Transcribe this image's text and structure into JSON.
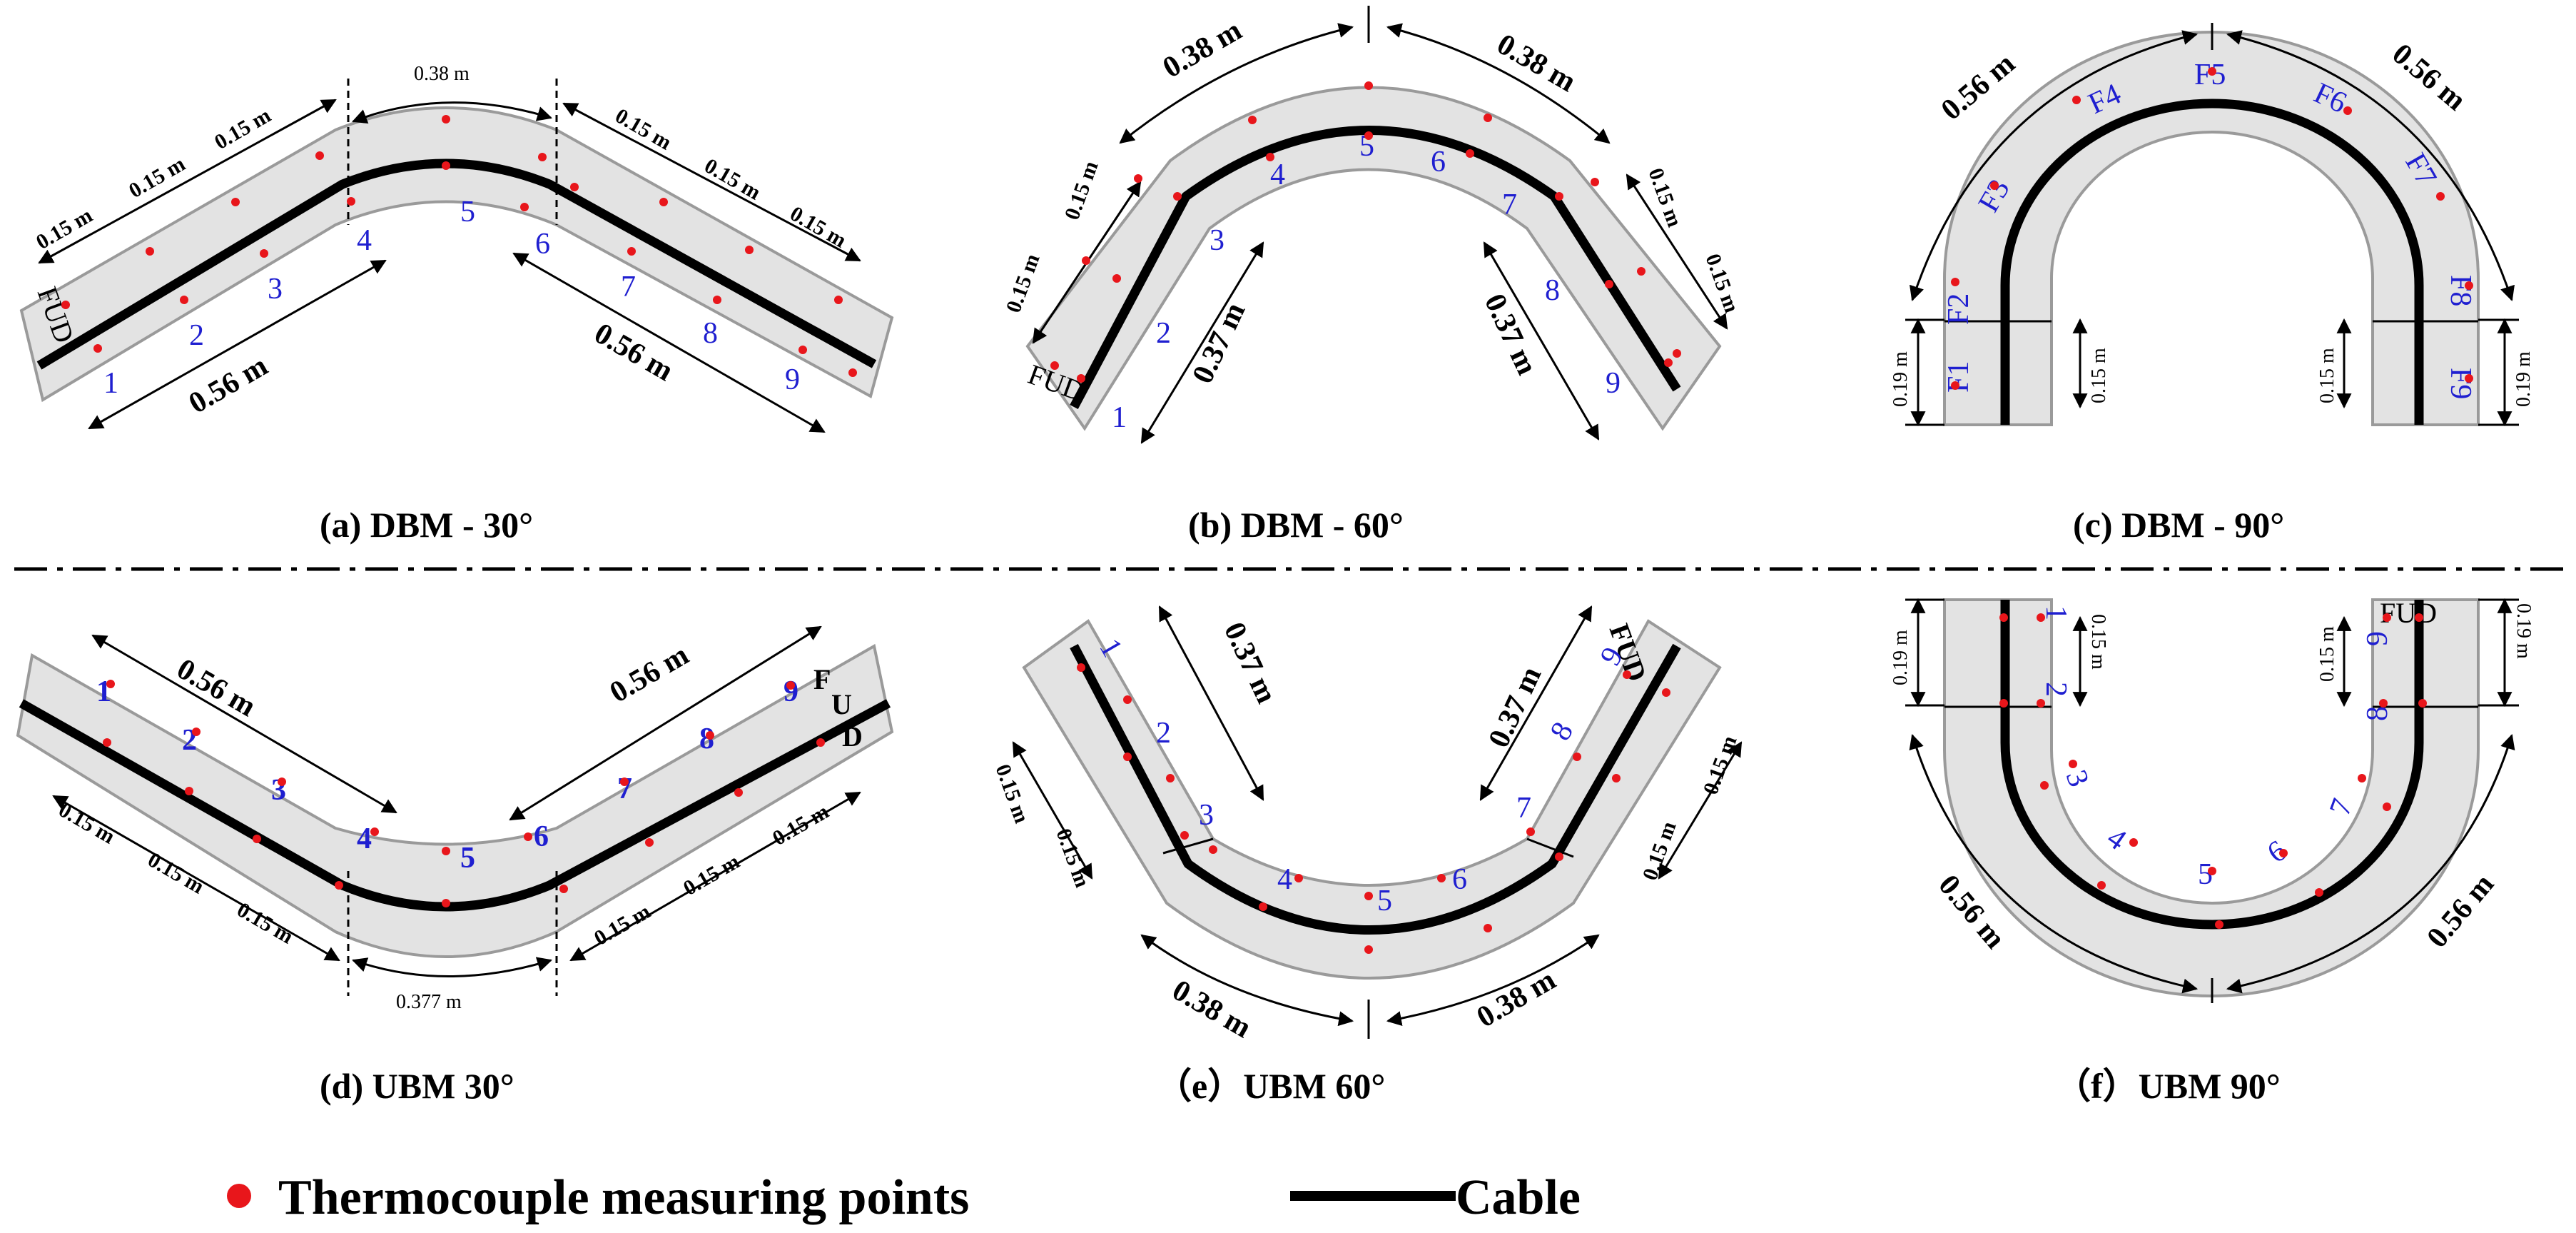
{
  "captions": {
    "a": "(a) DBM - 30°",
    "b": "(b) DBM - 60°",
    "c": "(c) DBM - 90°",
    "d": "(d) UBM  30°",
    "e": "（e）UBM  60°",
    "f": "（f）UBM  90°"
  },
  "legend": {
    "points": "Thermocouple measuring points",
    "cable": "Cable"
  },
  "colors": {
    "tray": "#e3e3e3",
    "tray_border": "#9a9a9a",
    "cable": "#000000",
    "point": "#e8161b",
    "label": "#1f1fd0"
  },
  "labels": {
    "fud": "FUD",
    "f": "F",
    "u": "U",
    "d": "D",
    "pos": [
      "1",
      "2",
      "3",
      "4",
      "5",
      "6",
      "7",
      "8",
      "9"
    ],
    "f_pos": [
      "F1",
      "F2",
      "F3",
      "F4",
      "F5",
      "F6",
      "F7",
      "F8",
      "F9"
    ]
  },
  "dims": {
    "d015": "0.15 m",
    "d019": "0.19 m",
    "d037": "0.37 m",
    "d038": "0.38 m",
    "d056": "0.56 m",
    "d0377": "0.377 m"
  }
}
